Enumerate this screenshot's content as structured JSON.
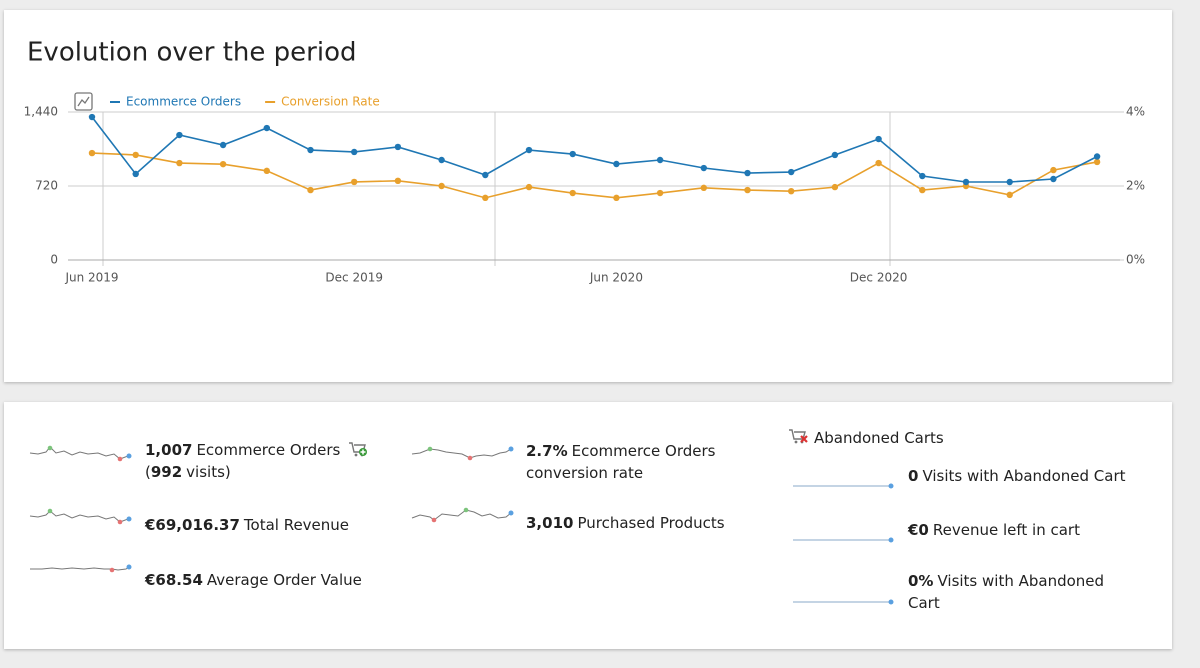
{
  "chart_data": {
    "type": "line",
    "title": "Evolution over the period",
    "categories": [
      "Jun 2019",
      null,
      null,
      null,
      null,
      null,
      "Dec 2019",
      null,
      null,
      null,
      null,
      null,
      "Jun 2020",
      null,
      null,
      null,
      null,
      null,
      "Dec 2020",
      null,
      null,
      null,
      null,
      null
    ],
    "series": [
      {
        "name": "Ecommerce Orders",
        "color": "#1f77b4",
        "axis": "y",
        "values": [
          1391,
          837,
          1216,
          1119,
          1284,
          1070,
          1051,
          1100,
          973,
          827,
          1070,
          1031,
          934,
          973,
          895,
          846,
          856,
          1022,
          1177,
          817,
          759,
          759,
          788,
          1007
        ]
      },
      {
        "name": "Conversion Rate",
        "color": "#e8a02c",
        "axis": "y2",
        "values": [
          2.89,
          2.84,
          2.62,
          2.59,
          2.41,
          1.89,
          2.11,
          2.14,
          2.0,
          1.68,
          1.97,
          1.81,
          1.68,
          1.81,
          1.95,
          1.89,
          1.86,
          1.97,
          2.62,
          1.89,
          2.0,
          1.76,
          2.43,
          2.65
        ]
      }
    ],
    "ylim": [
      0,
      1440
    ],
    "yticks": [
      0,
      720,
      {
        "value": 1440,
        "label": "1,440"
      }
    ],
    "y2lim": [
      0,
      4
    ],
    "y2ticks": [
      {
        "value": 0,
        "label": "0%"
      },
      {
        "value": 2,
        "label": "2%"
      },
      {
        "value": 4,
        "label": "4%"
      }
    ],
    "grid": true,
    "legend": "top-left"
  },
  "metrics": [
    {
      "value": "1,007",
      "label": "Ecommerce Orders",
      "sub_open": "(",
      "sub_value": "992",
      "sub_label": "visits)"
    },
    {
      "value": "€69,016.37",
      "label": "Total Revenue"
    },
    {
      "value": "€68.54",
      "label": "Average Order Value"
    },
    {
      "value": "2.7%",
      "label": "Ecommerce Orders conversion rate"
    },
    {
      "value": "3,010",
      "label": "Purchased Products"
    }
  ],
  "abandoned_carts": {
    "title": "Abandoned Carts",
    "items": [
      {
        "value": "0",
        "label": "Visits with Abandoned Cart"
      },
      {
        "value": "€0",
        "label": "Revenue left in cart"
      },
      {
        "value": "0%",
        "label": "Visits with Abandoned Cart"
      }
    ]
  }
}
